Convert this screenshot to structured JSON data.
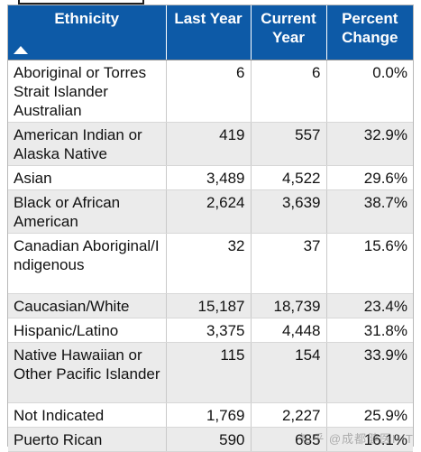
{
  "table": {
    "headers": [
      {
        "label": "Ethnicity"
      },
      {
        "label": "Last Year"
      },
      {
        "label": "Current Year"
      },
      {
        "label": "Percent Change"
      }
    ],
    "rows": [
      {
        "ethnicity": "Aboriginal or Torres Strait Islander Australian",
        "last_year": "6",
        "current_year": "6",
        "percent_change": "0.0%"
      },
      {
        "ethnicity": "American Indian or Alaska Native",
        "last_year": "419",
        "current_year": "557",
        "percent_change": "32.9%"
      },
      {
        "ethnicity": "Asian",
        "last_year": "3,489",
        "current_year": "4,522",
        "percent_change": "29.6%"
      },
      {
        "ethnicity": "Black or African American",
        "last_year": "2,624",
        "current_year": "3,639",
        "percent_change": "38.7%"
      },
      {
        "ethnicity": "Canadian Aboriginal/Indigenous",
        "last_year": "32",
        "current_year": "37",
        "percent_change": "15.6%"
      },
      {
        "ethnicity": "Caucasian/White",
        "last_year": "15,187",
        "current_year": "18,739",
        "percent_change": "23.4%"
      },
      {
        "ethnicity": "Hispanic/Latino",
        "last_year": "3,375",
        "current_year": "4,448",
        "percent_change": "31.8%"
      },
      {
        "ethnicity": "Native Hawaiian or Other Pacific Islander",
        "last_year": "115",
        "current_year": "154",
        "percent_change": "33.9%"
      },
      {
        "ethnicity": "Not Indicated",
        "last_year": "1,769",
        "current_year": "2,227",
        "percent_change": "25.9%"
      },
      {
        "ethnicity": "Puerto Rican",
        "last_year": "590",
        "current_year": "685",
        "percent_change": "16.1%"
      }
    ],
    "sort_icon": "sort-ascending-icon"
  },
  "watermark": "知乎 @成都健医HIT",
  "colors": {
    "header_bg": "#0d5aa7",
    "header_text": "#ffffff",
    "row_alt_bg": "#ebebeb"
  }
}
